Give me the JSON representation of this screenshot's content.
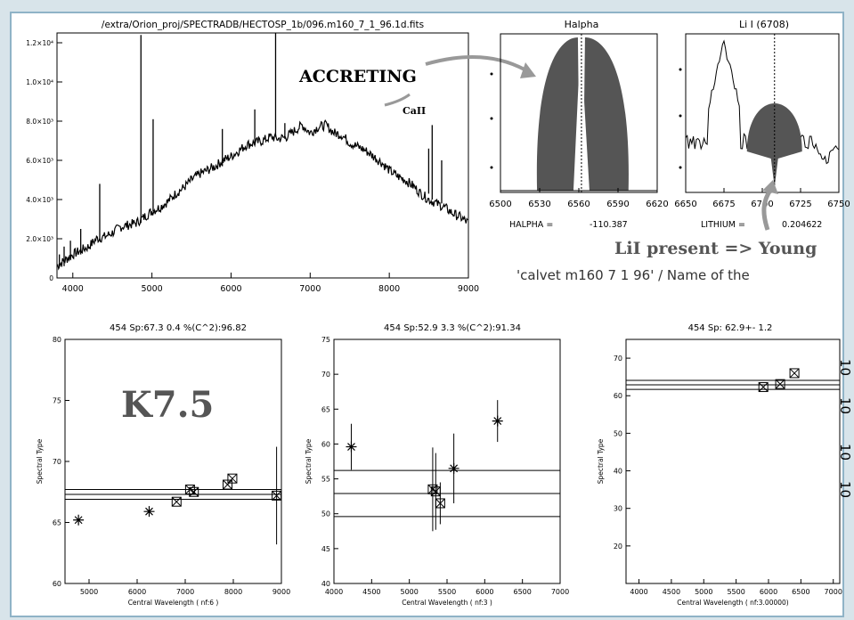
{
  "top_note": {
    "spectral_type": "K7.5",
    "accreting": "ACCRETING",
    "call": "CaII",
    "lithium_note": "LiI present => Young",
    "header_line": "'calvet m160 7 1 96' / Name of the"
  },
  "chart_data": [
    {
      "type": "line",
      "title": "/extra/Orion_proj/SPECTRADB/HECTOSP_1b/096.m160_7_1_96.1d.fits",
      "xlim": [
        3800,
        9000
      ],
      "ylim": [
        0,
        12500
      ],
      "x_ticks": [
        4000,
        5000,
        6000,
        7000,
        8000,
        9000
      ],
      "y_ticks": [
        0,
        2000,
        4000,
        6000,
        8000,
        10000,
        12000
      ],
      "y_tick_labels": [
        "0",
        "2.0×10³",
        "4.0×10³",
        "6.0×10³",
        "8.0×10³",
        "1.0×10⁴",
        "1.2×10⁴"
      ],
      "series": [
        {
          "x": [
            3800,
            3900,
            4000,
            4100,
            4200,
            4300,
            4400,
            4500,
            4600,
            4700,
            4800,
            4900,
            5000,
            5100,
            5200,
            5300,
            5400,
            5500,
            5600,
            5700,
            5800,
            5900,
            6000,
            6100,
            6200,
            6300,
            6400,
            6500,
            6600,
            6700,
            6800,
            6900,
            7000,
            7100,
            7200,
            7300,
            7400,
            7500,
            7600,
            7700,
            7800,
            7900,
            8000,
            8100,
            8200,
            8300,
            8400,
            8500,
            8600,
            8700,
            8800,
            8900,
            9000
          ],
          "y": [
            600,
            900,
            1200,
            1400,
            1600,
            2000,
            2100,
            2300,
            2600,
            2700,
            2800,
            3100,
            3400,
            3600,
            3900,
            4300,
            4600,
            5000,
            5300,
            5500,
            5700,
            6000,
            6200,
            6500,
            6800,
            6900,
            7000,
            7200,
            7100,
            7200,
            7500,
            7800,
            7400,
            7700,
            7800,
            7400,
            7300,
            6900,
            6700,
            6500,
            6200,
            5900,
            5500,
            5200,
            5000,
            4700,
            4300,
            4000,
            3800,
            3600,
            3300,
            3100,
            2800
          ]
        }
      ],
      "emission_lines": [
        {
          "x": 3830,
          "y": 1200
        },
        {
          "x": 3890,
          "y": 1600
        },
        {
          "x": 3970,
          "y": 1900
        },
        {
          "x": 4100,
          "y": 2500
        },
        {
          "x": 4340,
          "y": 4800
        },
        {
          "x": 4861,
          "y": 12400
        },
        {
          "x": 5015,
          "y": 8100
        },
        {
          "x": 5890,
          "y": 7600
        },
        {
          "x": 6300,
          "y": 8600
        },
        {
          "x": 6563,
          "y": 12500
        },
        {
          "x": 6680,
          "y": 7900
        },
        {
          "x": 8498,
          "y": 6600
        },
        {
          "x": 8542,
          "y": 7800
        },
        {
          "x": 8662,
          "y": 6000
        }
      ]
    },
    {
      "type": "area",
      "title": "Halpha",
      "xlim": [
        6500,
        6620
      ],
      "x_ticks": [
        6500,
        6530,
        6560,
        6590,
        6620
      ],
      "footer_label": "HALPHA =",
      "footer_value": "-110.387"
    },
    {
      "type": "area",
      "title": "Li I (6708)",
      "xlim": [
        6650,
        6750
      ],
      "x_ticks": [
        6650,
        6675,
        6700,
        6725,
        6750
      ],
      "footer_label": "LITHIUM =",
      "footer_value": "0.204622"
    },
    {
      "type": "scatter",
      "title": "454 Sp:67.3   0.4    %(C^2):96.82",
      "xlabel": "Central Wavelength ( nf:6  )",
      "ylabel": "Spectral Type",
      "xlim": [
        4500,
        9000
      ],
      "ylim": [
        60,
        80
      ],
      "x_ticks": [
        5000,
        6000,
        7000,
        8000,
        9000
      ],
      "y_ticks": [
        60,
        65,
        70,
        75,
        80
      ],
      "hlines": [
        67.3,
        66.9,
        67.7
      ],
      "points": [
        {
          "x": 4780,
          "y": 65.2,
          "marker": "star"
        },
        {
          "x": 6250,
          "y": 65.9,
          "marker": "star"
        },
        {
          "x": 6820,
          "y": 66.7,
          "marker": "box"
        },
        {
          "x": 7100,
          "y": 67.7,
          "marker": "box"
        },
        {
          "x": 7180,
          "y": 67.5,
          "marker": "box"
        },
        {
          "x": 7880,
          "y": 68.1,
          "marker": "box"
        },
        {
          "x": 7980,
          "y": 68.6,
          "marker": "box"
        },
        {
          "x": 8900,
          "y": 67.2,
          "marker": "box",
          "err": 4.0
        }
      ]
    },
    {
      "type": "scatter",
      "title": "454 Sp:52.9   3.3    %(C^2):91.34",
      "xlabel": "Central Wavelength ( nf:3  )",
      "ylabel": "Spectral Type",
      "xlim": [
        4000,
        7000
      ],
      "ylim": [
        40,
        75
      ],
      "x_ticks": [
        4000,
        4500,
        5000,
        5500,
        6000,
        6500,
        7000
      ],
      "y_ticks": [
        40,
        45,
        50,
        55,
        60,
        65,
        70,
        75
      ],
      "hlines": [
        52.9,
        49.6,
        56.2
      ],
      "points": [
        {
          "x": 4230,
          "y": 59.6,
          "marker": "star",
          "err": 3.3
        },
        {
          "x": 5310,
          "y": 53.5,
          "marker": "box",
          "err": 6.0
        },
        {
          "x": 5350,
          "y": 53.2,
          "marker": "box",
          "err": 5.5
        },
        {
          "x": 5410,
          "y": 51.5,
          "marker": "box",
          "err": 3.0
        },
        {
          "x": 5590,
          "y": 56.5,
          "marker": "star",
          "err": 5.0
        },
        {
          "x": 6170,
          "y": 63.3,
          "marker": "star",
          "err": 3.0
        }
      ]
    },
    {
      "type": "scatter",
      "title": "454 Sp:      62.9+-       1.2",
      "xlabel": "Central Wavelength ( nf:3.00000)",
      "ylabel": "Spectral Type",
      "xlim": [
        3800,
        7100
      ],
      "ylim": [
        10,
        75
      ],
      "x_ticks": [
        4000,
        4500,
        5000,
        5500,
        6000,
        6500,
        7000
      ],
      "y_ticks": [
        20,
        30,
        40,
        50,
        60,
        70
      ],
      "hlines": [
        62.9,
        61.7,
        64.1
      ],
      "points": [
        {
          "x": 5920,
          "y": 62.3,
          "marker": "box"
        },
        {
          "x": 6180,
          "y": 63.1,
          "marker": "box"
        },
        {
          "x": 6400,
          "y": 66.0,
          "marker": "box"
        }
      ],
      "side_labels": [
        "10",
        "10",
        "10",
        "10"
      ]
    }
  ]
}
